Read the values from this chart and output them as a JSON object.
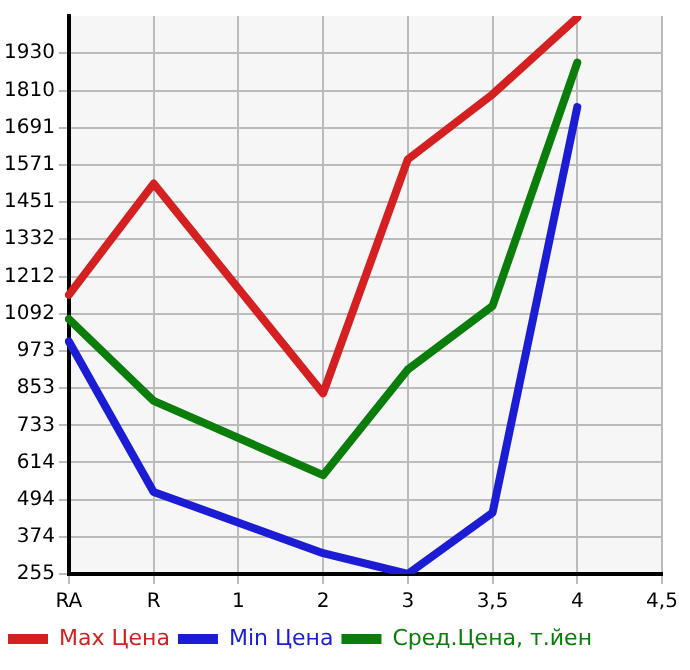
{
  "chart_data": {
    "type": "line",
    "categories": [
      "RA",
      "R",
      "1",
      "2",
      "3",
      "3,5",
      "4",
      "4,5"
    ],
    "series": [
      {
        "name": "Max Цена",
        "color": "#d42020",
        "values": [
          1153,
          1511,
          null,
          836,
          1589,
          1798,
          2045,
          null
        ]
      },
      {
        "name": "Min Цена",
        "color": "#1c1cd4",
        "values": [
          1003,
          519,
          null,
          322,
          255,
          452,
          1757,
          null
        ]
      },
      {
        "name": "Сред.Цена, т.йен",
        "color": "#0a7d0a",
        "values": [
          1075,
          812,
          null,
          573,
          913,
          1117,
          1900,
          null
        ]
      }
    ],
    "ylim": [
      255,
      2050
    ],
    "yticks": [
      255,
      374,
      494,
      614,
      733,
      853,
      973,
      1092,
      1212,
      1332,
      1451,
      1571,
      1691,
      1810,
      1930
    ],
    "grid": true,
    "legend": "bottom",
    "marker": "none",
    "line_style": "solid"
  }
}
